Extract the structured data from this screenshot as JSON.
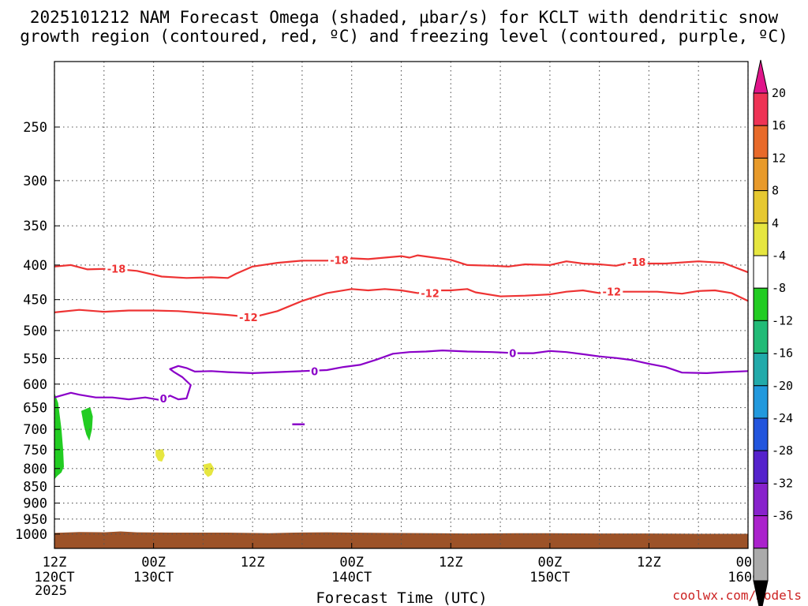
{
  "chart_data": {
    "type": "time-height cross section",
    "title_line1": "2025101212 NAM Forecast Omega (shaded, µbar/s) for KCLT with dendritic snow",
    "title_line2": "growth region (contoured, red, ºC) and freezing level (contoured, purple, ºC)",
    "xlabel": "Forecast Time (UTC)",
    "credit": "coolwx.com/models",
    "pressure_range": [
      1050,
      200
    ],
    "pressure_ticks": [
      250,
      300,
      350,
      400,
      450,
      500,
      550,
      600,
      650,
      700,
      750,
      800,
      850,
      900,
      950,
      1000
    ],
    "pressure_tick_labels": [
      "250",
      "300",
      "350",
      "400",
      "450",
      "500",
      "550",
      "600",
      "650",
      "700",
      "750",
      "800",
      "850",
      "900",
      "950",
      "1000"
    ],
    "time_range_hours": [
      0,
      84
    ],
    "time_ticks": [
      {
        "hour": 0,
        "top": "12Z",
        "bottom": "120CT"
      },
      {
        "hour": 12,
        "top": "00Z",
        "bottom": "130CT"
      },
      {
        "hour": 24,
        "top": "12Z",
        "bottom": ""
      },
      {
        "hour": 36,
        "top": "00Z",
        "bottom": "140CT"
      },
      {
        "hour": 48,
        "top": "12Z",
        "bottom": ""
      },
      {
        "hour": 60,
        "top": "00Z",
        "bottom": "150CT"
      },
      {
        "hour": 72,
        "top": "12Z",
        "bottom": ""
      },
      {
        "hour": 84,
        "top": "00Z",
        "bottom": "160CT"
      }
    ],
    "year_label": "2025",
    "colorbar": {
      "labels": [
        "20",
        "16",
        "12",
        "8",
        "4",
        "-4",
        "-8",
        "-12",
        "-16",
        "-20",
        "-24",
        "-28",
        "-32",
        "-36"
      ],
      "colors": [
        "#ee3355",
        "#e86a2a",
        "#e89a2a",
        "#e6c830",
        "#e6e640",
        "#ffffff",
        "#22cc22",
        "#22bb77",
        "#22aaaa",
        "#2299dd",
        "#2255dd",
        "#5522cc",
        "#8822cc",
        "#aa22cc",
        "#aaaaaa"
      ],
      "top_arrow_color": "#e0158a",
      "bottom_arrow_color": "#000000"
    },
    "contours": {
      "minus18": {
        "label": "-18",
        "color": "#ee3333",
        "points": [
          [
            0,
            402
          ],
          [
            2,
            400
          ],
          [
            4,
            406
          ],
          [
            7,
            405
          ],
          [
            10,
            408
          ],
          [
            13,
            416
          ],
          [
            16,
            418
          ],
          [
            19,
            417
          ],
          [
            21,
            418
          ],
          [
            22,
            412
          ],
          [
            24,
            402
          ],
          [
            27,
            397
          ],
          [
            30,
            394
          ],
          [
            33,
            394
          ],
          [
            35,
            393
          ],
          [
            36,
            391
          ],
          [
            38,
            392
          ],
          [
            40,
            390
          ],
          [
            42,
            388
          ],
          [
            43,
            390
          ],
          [
            44,
            387
          ],
          [
            46,
            390
          ],
          [
            48,
            393
          ],
          [
            50,
            400
          ],
          [
            53,
            401
          ],
          [
            55,
            402
          ],
          [
            57,
            399
          ],
          [
            60,
            400
          ],
          [
            62,
            395
          ],
          [
            64,
            398
          ],
          [
            66,
            399
          ],
          [
            68,
            401
          ],
          [
            70,
            396
          ],
          [
            72,
            398
          ],
          [
            74,
            398
          ],
          [
            78,
            395
          ],
          [
            81,
            397
          ],
          [
            84,
            410
          ]
        ],
        "label_positions": [
          [
            7.5,
            405
          ],
          [
            34.5,
            393
          ],
          [
            70.5,
            396
          ]
        ]
      },
      "minus12": {
        "label": "-12",
        "color": "#ee3333",
        "points": [
          [
            0,
            470
          ],
          [
            3,
            466
          ],
          [
            6,
            469
          ],
          [
            9,
            467
          ],
          [
            12,
            467
          ],
          [
            15,
            468
          ],
          [
            18,
            471
          ],
          [
            21,
            474
          ],
          [
            24,
            478
          ],
          [
            27,
            468
          ],
          [
            30,
            452
          ],
          [
            33,
            440
          ],
          [
            36,
            434
          ],
          [
            38,
            436
          ],
          [
            40,
            434
          ],
          [
            42,
            436
          ],
          [
            44,
            440
          ],
          [
            46,
            436
          ],
          [
            48,
            436
          ],
          [
            50,
            434
          ],
          [
            51,
            439
          ],
          [
            54,
            445
          ],
          [
            57,
            444
          ],
          [
            60,
            442
          ],
          [
            62,
            438
          ],
          [
            64,
            436
          ],
          [
            66,
            440
          ],
          [
            68,
            438
          ],
          [
            71,
            438
          ],
          [
            73,
            438
          ],
          [
            76,
            441
          ],
          [
            78,
            437
          ],
          [
            80,
            436
          ],
          [
            82,
            440
          ],
          [
            84,
            452
          ]
        ],
        "label_positions": [
          [
            23.5,
            478
          ],
          [
            45.5,
            440
          ],
          [
            67.5,
            438
          ]
        ]
      },
      "zero": {
        "label": "0",
        "color": "#8a00c8",
        "points": [
          [
            0,
            628
          ],
          [
            2,
            618
          ],
          [
            3,
            622
          ],
          [
            5,
            628
          ],
          [
            7,
            628
          ],
          [
            9,
            632
          ],
          [
            11,
            628
          ],
          [
            13,
            634
          ],
          [
            14,
            624
          ],
          [
            15,
            632
          ],
          [
            16,
            630
          ],
          [
            16.5,
            602
          ],
          [
            15.5,
            586
          ],
          [
            14.5,
            576
          ],
          [
            14,
            570
          ],
          [
            15,
            564
          ],
          [
            16,
            568
          ],
          [
            17,
            575
          ],
          [
            19,
            574
          ],
          [
            21,
            576
          ],
          [
            24,
            578
          ],
          [
            27,
            576
          ],
          [
            30,
            574
          ],
          [
            33,
            572
          ],
          [
            35,
            566
          ],
          [
            37,
            562
          ],
          [
            39,
            552
          ],
          [
            41,
            541
          ],
          [
            43,
            538
          ],
          [
            45,
            537
          ],
          [
            47,
            535
          ],
          [
            50,
            537
          ],
          [
            53,
            538
          ],
          [
            56,
            540
          ],
          [
            58,
            540
          ],
          [
            60,
            536
          ],
          [
            62,
            538
          ],
          [
            64,
            542
          ],
          [
            66,
            546
          ],
          [
            68,
            549
          ],
          [
            70,
            553
          ],
          [
            72,
            560
          ],
          [
            74,
            566
          ],
          [
            76,
            577
          ],
          [
            79,
            578
          ],
          [
            81,
            576
          ],
          [
            84,
            574
          ]
        ],
        "label_positions": [
          [
            13.2,
            630
          ],
          [
            31.5,
            574
          ],
          [
            55.5,
            540
          ]
        ],
        "small_segment": [
          [
            28.8,
            688
          ],
          [
            30.3,
            688
          ]
        ]
      }
    },
    "shaded_regions": [
      {
        "value_range": "-8 to -4",
        "color": "#22cc22",
        "points": [
          [
            0,
            620
          ],
          [
            0.4,
            640
          ],
          [
            0.8,
            700
          ],
          [
            1.0,
            750
          ],
          [
            1.1,
            795
          ],
          [
            0.8,
            810
          ],
          [
            0.3,
            820
          ],
          [
            0,
            828
          ]
        ]
      },
      {
        "value_range": "-8 to -4",
        "color": "#22cc22",
        "points": [
          [
            3.3,
            658
          ],
          [
            4.3,
            650
          ],
          [
            4.6,
            670
          ],
          [
            4.5,
            700
          ],
          [
            4.2,
            725
          ],
          [
            3.9,
            712
          ],
          [
            3.6,
            690
          ]
        ]
      },
      {
        "value_range": "4 to 8",
        "color": "#e6e640",
        "points": [
          [
            12.3,
            752
          ],
          [
            13.1,
            750
          ],
          [
            13.3,
            765
          ],
          [
            13.0,
            780
          ],
          [
            12.6,
            778
          ],
          [
            12.3,
            765
          ]
        ]
      },
      {
        "value_range": "4 to 8",
        "color": "#e6e640",
        "points": [
          [
            18.1,
            790
          ],
          [
            18.9,
            786
          ],
          [
            19.3,
            800
          ],
          [
            19.0,
            817
          ],
          [
            18.6,
            822
          ],
          [
            18.2,
            812
          ]
        ]
      }
    ],
    "surface": {
      "color": "#9c5228",
      "top_pressures": [
        [
          0,
          996
        ],
        [
          3,
          993
        ],
        [
          6,
          994
        ],
        [
          8,
          991
        ],
        [
          10,
          994
        ],
        [
          14,
          995
        ],
        [
          21,
          995
        ],
        [
          26,
          997
        ],
        [
          29,
          995
        ],
        [
          33,
          994
        ],
        [
          36,
          995
        ],
        [
          40,
          996
        ],
        [
          46,
          997
        ],
        [
          50,
          998
        ],
        [
          56,
          997
        ],
        [
          60,
          997
        ],
        [
          66,
          998
        ],
        [
          72,
          998
        ],
        [
          78,
          999
        ],
        [
          84,
          999
        ]
      ]
    }
  }
}
